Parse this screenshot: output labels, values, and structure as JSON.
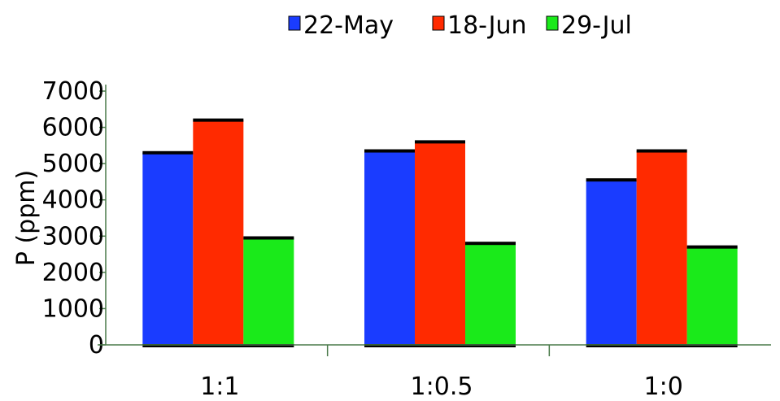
{
  "chart_data": {
    "type": "bar",
    "title": "",
    "xlabel": "",
    "ylabel": "P (ppm)",
    "ylim": [
      0,
      7000
    ],
    "yticks": [
      "0",
      "1000",
      "2000",
      "3000",
      "4000",
      "5000",
      "6000",
      "7000"
    ],
    "categories": [
      "1:1",
      "1:0.5",
      "1:0"
    ],
    "series": [
      {
        "name": "22-May",
        "values": [
          5300,
          5350,
          4550
        ],
        "color": "#1a3cff"
      },
      {
        "name": "18-Jun",
        "values": [
          6200,
          5600,
          5350
        ],
        "color": "#ff2a00"
      },
      {
        "name": "29-Jul",
        "values": [
          2950,
          2800,
          2700
        ],
        "color": "#1aea1a"
      }
    ],
    "legend_position": "top-right",
    "grid": false
  }
}
